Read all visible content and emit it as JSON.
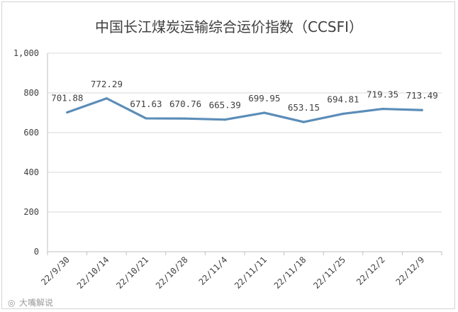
{
  "chart_data": {
    "type": "line",
    "title": "中国长江煤炭运输综合运价指数（CCSFI）",
    "xlabel": "",
    "ylabel": "",
    "categories": [
      "22/9/30",
      "22/10/14",
      "22/10/21",
      "22/10/28",
      "22/11/4",
      "22/11/11",
      "22/11/18",
      "22/11/25",
      "22/12/2",
      "22/12/9"
    ],
    "series": [
      {
        "values": [
          701.88,
          772.29,
          671.63,
          670.76,
          665.39,
          699.95,
          653.15,
          694.81,
          719.35,
          713.49
        ],
        "labels": [
          "701.88",
          "772.29",
          "671.63",
          "670.76",
          "665.39",
          "699.95",
          "653.15",
          "694.81",
          "719.35",
          "713.49"
        ]
      }
    ],
    "ylim": [
      0,
      1000
    ],
    "yticks": [
      0,
      200,
      400,
      600,
      800,
      1000
    ],
    "ytick_labels": [
      "0",
      "200",
      "400",
      "600",
      "800",
      "1,000"
    ],
    "grid": true,
    "legend": "none",
    "colors": {
      "line": "#5b8db8",
      "grid": "#d9d9d9",
      "axis": "#bfbfbf"
    }
  },
  "watermark": {
    "text": "大嘴解说"
  }
}
